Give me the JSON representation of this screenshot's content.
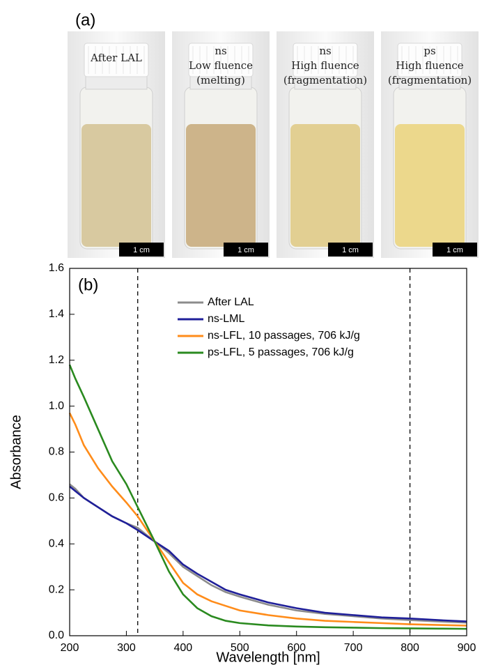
{
  "panel_a": {
    "label": "(a)",
    "photos": [
      {
        "lines": [
          "After LAL"
        ],
        "scale": "1 cm",
        "liquid": "#d8c9a0"
      },
      {
        "lines": [
          "ns",
          "Low fluence",
          "(melting)"
        ],
        "scale": "1 cm",
        "liquid": "#cdb48a"
      },
      {
        "lines": [
          "ns",
          "High fluence",
          "(fragmentation)"
        ],
        "scale": "1 cm",
        "liquid": "#e2cf92"
      },
      {
        "lines": [
          "ps",
          "High fluence",
          "(fragmentation)"
        ],
        "scale": "1 cm",
        "liquid": "#ecd88c"
      }
    ]
  },
  "chart_data": {
    "type": "line",
    "panel_label": "(b)",
    "x_label": "Wavelength [nm]",
    "y_label": "Absorbance",
    "xlim": [
      200,
      900
    ],
    "xticks": [
      200,
      300,
      400,
      500,
      600,
      700,
      800,
      900
    ],
    "ylim": [
      0,
      1.6
    ],
    "yticks": [
      {
        "value": 0,
        "label": "0.0"
      },
      0.2,
      0.4,
      0.6,
      0.8,
      {
        "value": 1,
        "label": "1.0"
      },
      1.2,
      1.4,
      1.6
    ],
    "vlines": [
      320,
      800
    ],
    "x": [
      200,
      210,
      225,
      250,
      275,
      300,
      320,
      350,
      375,
      400,
      425,
      450,
      475,
      500,
      550,
      600,
      650,
      700,
      750,
      800,
      850,
      900
    ],
    "series": [
      {
        "name": "After LAL",
        "color": "#8c8c8c",
        "values": [
          0.66,
          0.64,
          0.6,
          0.56,
          0.52,
          0.49,
          0.47,
          0.41,
          0.36,
          0.3,
          0.26,
          0.22,
          0.19,
          0.17,
          0.135,
          0.11,
          0.095,
          0.085,
          0.075,
          0.068,
          0.062,
          0.057
        ]
      },
      {
        "name": "ns-LML",
        "color": "#1f1f99",
        "values": [
          0.65,
          0.63,
          0.6,
          0.56,
          0.52,
          0.49,
          0.46,
          0.41,
          0.37,
          0.31,
          0.27,
          0.235,
          0.2,
          0.18,
          0.145,
          0.12,
          0.1,
          0.09,
          0.08,
          0.075,
          0.068,
          0.062
        ]
      },
      {
        "name": "ns-LFL, 10 passages, 706 kJ/g",
        "color": "#ff8c1a",
        "values": [
          0.97,
          0.92,
          0.83,
          0.73,
          0.65,
          0.58,
          0.52,
          0.41,
          0.32,
          0.23,
          0.18,
          0.15,
          0.13,
          0.11,
          0.09,
          0.075,
          0.065,
          0.06,
          0.055,
          0.05,
          0.047,
          0.044
        ]
      },
      {
        "name": "ps-LFL, 5 passages, 706 kJ/g",
        "color": "#2a8a1f",
        "values": [
          1.18,
          1.12,
          1.04,
          0.9,
          0.76,
          0.66,
          0.56,
          0.41,
          0.28,
          0.18,
          0.12,
          0.085,
          0.065,
          0.055,
          0.045,
          0.04,
          0.037,
          0.035,
          0.033,
          0.032,
          0.031,
          0.03
        ]
      }
    ]
  }
}
